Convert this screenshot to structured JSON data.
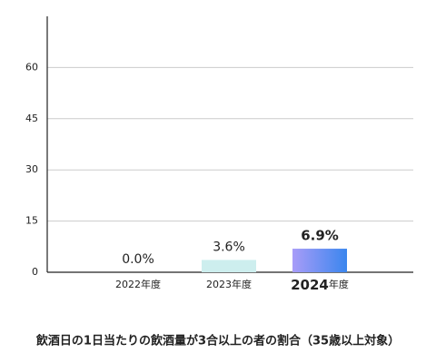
{
  "chart_data": {
    "type": "bar",
    "title": "飲酒日の1日当たりの飲酒量が3合以上の者の割合（35歳以上対象）",
    "categories": [
      "2022年度",
      "2023年度",
      "2024年度"
    ],
    "values": [
      0.0,
      3.6,
      6.9
    ],
    "value_labels": [
      "0.0%",
      "3.6%",
      "6.9%"
    ],
    "colors": [
      "#cdeeee",
      "#cdeeee",
      "#5b8af2"
    ],
    "ylim": [
      0,
      75
    ],
    "yticks": [
      0,
      15,
      30,
      45,
      60
    ],
    "grid": true
  }
}
